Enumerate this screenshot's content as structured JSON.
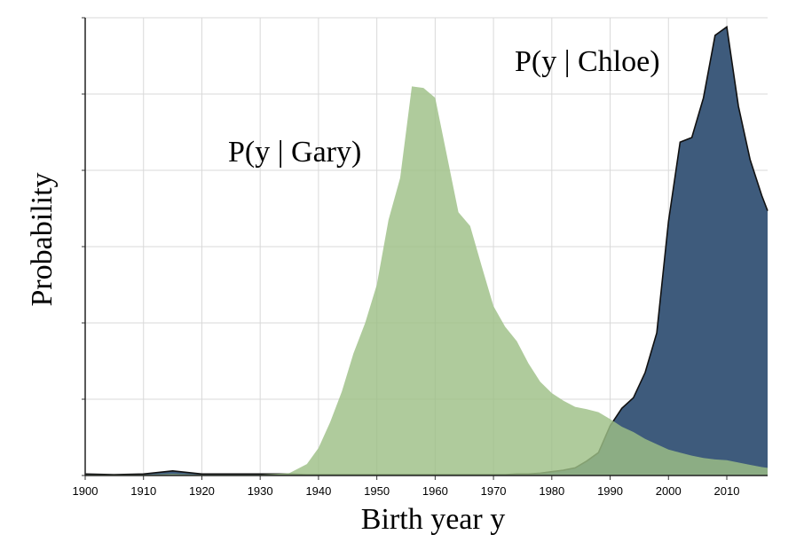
{
  "chart_data": {
    "type": "area",
    "x_label": "Birth year y",
    "y_label": "Probability",
    "annotations": [
      "P(y | Gary)",
      "P(y | Chloe)"
    ],
    "x": [
      1900,
      1905,
      1910,
      1915,
      1920,
      1925,
      1930,
      1935,
      1938,
      1940,
      1942,
      1944,
      1946,
      1948,
      1950,
      1952,
      1954,
      1956,
      1958,
      1960,
      1962,
      1964,
      1966,
      1968,
      1970,
      1972,
      1974,
      1976,
      1978,
      1980,
      1982,
      1984,
      1986,
      1988,
      1990,
      1992,
      1994,
      1996,
      1998,
      2000,
      2002,
      2004,
      2006,
      2008,
      2010,
      2012,
      2014,
      2016,
      2017
    ],
    "series": [
      {
        "name": "Chloe",
        "color": "#3e5b7c",
        "values": [
          0.02,
          0.01,
          0.02,
          0.06,
          0.02,
          0.02,
          0.02,
          0.02,
          0.01,
          0.01,
          0.01,
          0.01,
          0.01,
          0.01,
          0.01,
          0.01,
          0.01,
          0.01,
          0.01,
          0.01,
          0.01,
          0.01,
          0.01,
          0.01,
          0.01,
          0.01,
          0.02,
          0.02,
          0.03,
          0.05,
          0.07,
          0.1,
          0.19,
          0.3,
          0.65,
          0.88,
          1.02,
          1.35,
          1.87,
          3.33,
          4.37,
          4.43,
          4.95,
          5.77,
          5.88,
          4.84,
          4.14,
          3.67,
          3.47
        ]
      },
      {
        "name": "Gary",
        "color": "#9dbf86",
        "values": [
          0.01,
          0.01,
          0.01,
          0.02,
          0.01,
          0.01,
          0.01,
          0.03,
          0.15,
          0.36,
          0.7,
          1.1,
          1.6,
          2.0,
          2.5,
          3.35,
          3.9,
          5.1,
          5.08,
          4.95,
          4.2,
          3.45,
          3.27,
          2.74,
          2.22,
          1.95,
          1.76,
          1.47,
          1.23,
          1.08,
          0.98,
          0.9,
          0.87,
          0.83,
          0.74,
          0.64,
          0.57,
          0.48,
          0.41,
          0.34,
          0.3,
          0.26,
          0.23,
          0.21,
          0.2,
          0.17,
          0.14,
          0.11,
          0.1
        ]
      }
    ],
    "xlim": [
      1900,
      2017
    ],
    "xticks": [
      1900,
      1910,
      1920,
      1930,
      1940,
      1950,
      1960,
      1970,
      1980,
      1990,
      2000,
      2010
    ],
    "ylim": [
      0,
      6
    ],
    "yticks": [
      0,
      1,
      2,
      3,
      4,
      5,
      6
    ],
    "grid": true
  }
}
